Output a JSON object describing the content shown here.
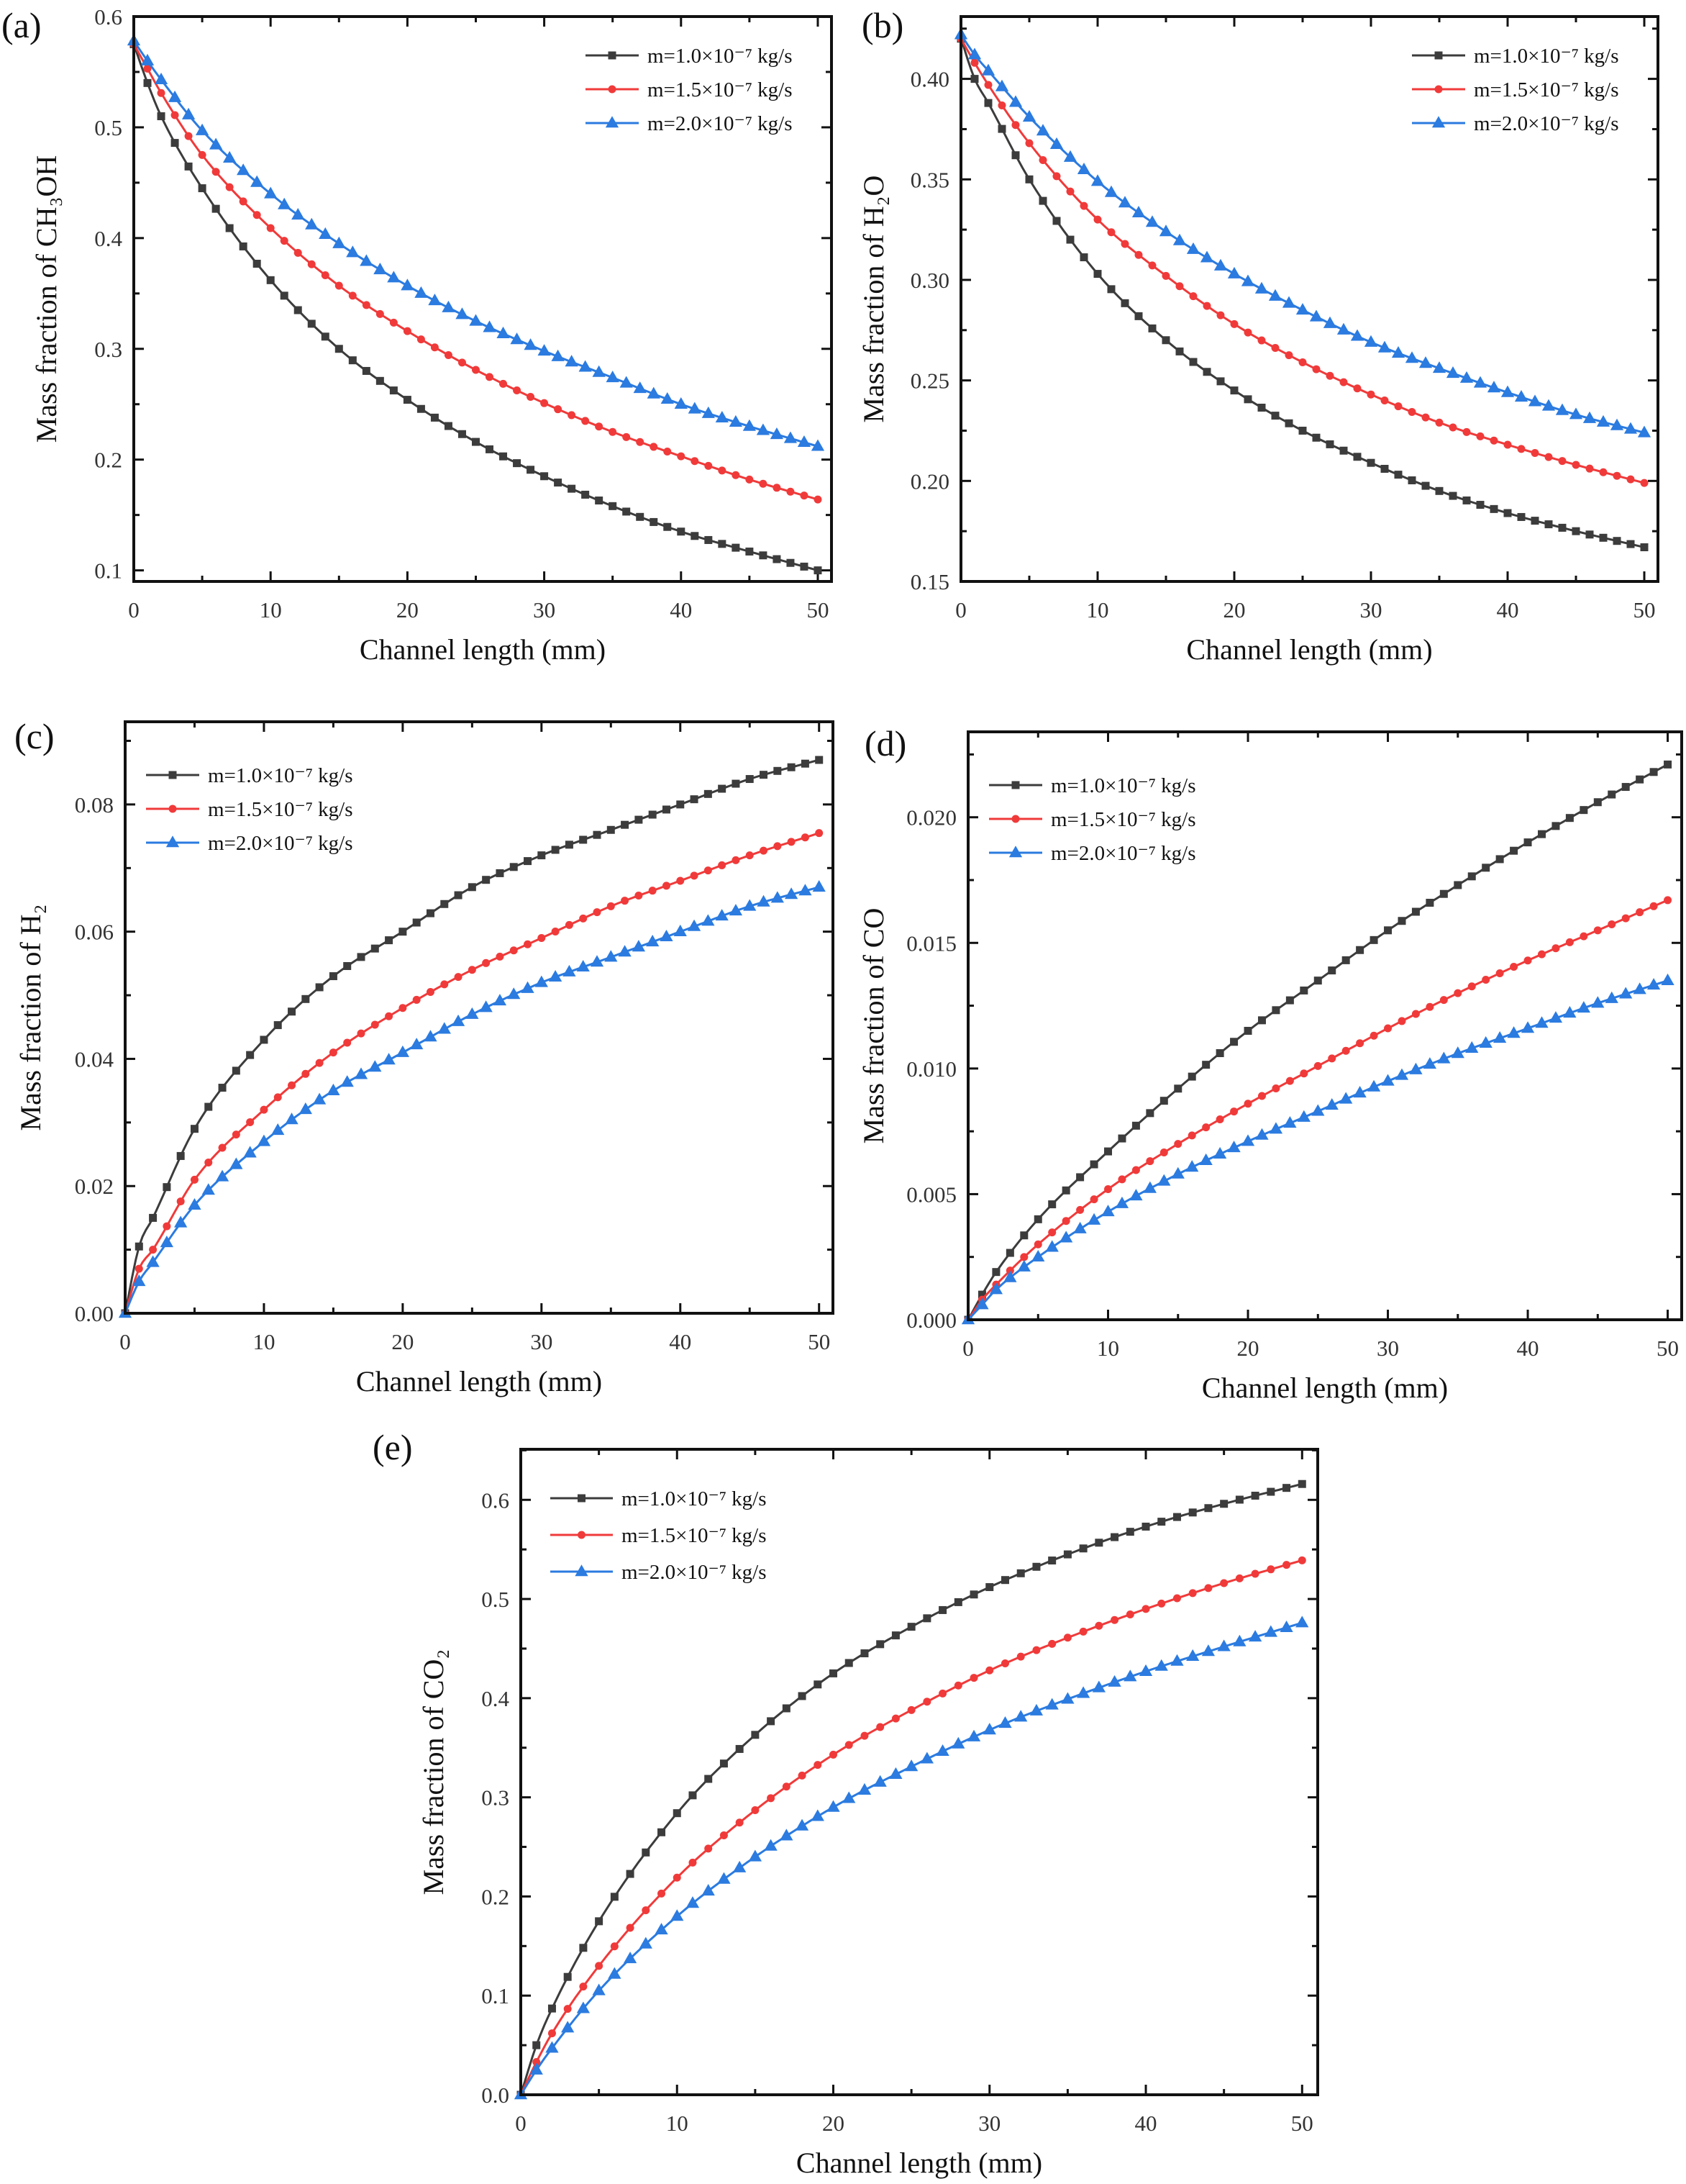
{
  "chart_data": [
    {
      "panel": "(a)",
      "type": "line",
      "xlabel": "Channel length (mm)",
      "ylabel": "Mass fraction of CH₃OH",
      "xlim": [
        0,
        51
      ],
      "ylim": [
        0.09,
        0.6
      ],
      "xticks": [
        0,
        10,
        20,
        30,
        40,
        50
      ],
      "xtick_labels": [
        "0",
        "10",
        "20",
        "30",
        "40",
        "50"
      ],
      "yticks": [
        0.1,
        0.2,
        0.3,
        0.4,
        0.5,
        0.6
      ],
      "ytick_labels": [
        "0.1",
        "0.2",
        "0.3",
        "0.4",
        "0.5",
        "0.6"
      ],
      "legend_position": "top-right",
      "grid": false,
      "x": [
        0,
        1,
        2,
        5,
        10,
        15,
        20,
        25,
        30,
        35,
        40,
        45,
        50
      ],
      "series": [
        {
          "name": "m=1.0×10⁻⁷ kg/s",
          "color": "#3c3c3c",
          "marker": "square",
          "values": [
            0.575,
            0.54,
            0.51,
            0.445,
            0.362,
            0.3,
            0.254,
            0.216,
            0.185,
            0.158,
            0.135,
            0.117,
            0.1
          ]
        },
        {
          "name": "m=1.5×10⁻⁷ kg/s",
          "color": "#f03a3a",
          "marker": "circle",
          "values": [
            0.575,
            0.553,
            0.531,
            0.475,
            0.409,
            0.357,
            0.316,
            0.281,
            0.251,
            0.225,
            0.203,
            0.182,
            0.164
          ]
        },
        {
          "name": "m=2.0×10⁻⁷ kg/s",
          "color": "#2b7be0",
          "marker": "triangle",
          "values": [
            0.578,
            0.56,
            0.543,
            0.497,
            0.44,
            0.395,
            0.357,
            0.325,
            0.298,
            0.274,
            0.25,
            0.23,
            0.212
          ]
        }
      ]
    },
    {
      "panel": "(b)",
      "type": "line",
      "xlabel": "Channel length (mm)",
      "ylabel": "Mass fraction of H₂O",
      "xlim": [
        0,
        51
      ],
      "ylim": [
        0.15,
        0.431
      ],
      "xticks": [
        0,
        10,
        20,
        30,
        40,
        50
      ],
      "xtick_labels": [
        "0",
        "10",
        "20",
        "30",
        "40",
        "50"
      ],
      "yticks": [
        0.15,
        0.2,
        0.25,
        0.3,
        0.35,
        0.4
      ],
      "ytick_labels": [
        "0.15",
        "0.20",
        "0.25",
        "0.30",
        "0.35",
        "0.40"
      ],
      "legend_position": "top-right",
      "grid": false,
      "x": [
        0,
        1,
        2,
        5,
        10,
        15,
        20,
        25,
        30,
        35,
        40,
        45,
        50
      ],
      "series": [
        {
          "name": "m=1.0×10⁻⁷ kg/s",
          "color": "#3c3c3c",
          "marker": "square",
          "values": [
            0.42,
            0.4,
            0.388,
            0.35,
            0.303,
            0.27,
            0.245,
            0.225,
            0.209,
            0.195,
            0.184,
            0.175,
            0.167
          ]
        },
        {
          "name": "m=1.5×10⁻⁷ kg/s",
          "color": "#f03a3a",
          "marker": "circle",
          "values": [
            0.42,
            0.408,
            0.397,
            0.368,
            0.33,
            0.302,
            0.278,
            0.259,
            0.243,
            0.229,
            0.218,
            0.208,
            0.199
          ]
        },
        {
          "name": "m=2.0×10⁻⁷ kg/s",
          "color": "#2b7be0",
          "marker": "triangle",
          "values": [
            0.422,
            0.412,
            0.404,
            0.381,
            0.349,
            0.324,
            0.303,
            0.285,
            0.269,
            0.256,
            0.244,
            0.233,
            0.224
          ]
        }
      ]
    },
    {
      "panel": "(c)",
      "type": "line",
      "xlabel": "Channel length (mm)",
      "ylabel": "Mass fraction of H₂",
      "xlim": [
        0,
        51
      ],
      "ylim": [
        0,
        0.093
      ],
      "xticks": [
        0,
        10,
        20,
        30,
        40,
        50
      ],
      "xtick_labels": [
        "0",
        "10",
        "20",
        "30",
        "40",
        "50"
      ],
      "yticks": [
        0,
        0.02,
        0.04,
        0.06,
        0.08
      ],
      "ytick_labels": [
        "0.00",
        "0.02",
        "0.04",
        "0.06",
        "0.08"
      ],
      "legend_position": "top-left",
      "grid": false,
      "x": [
        0,
        1,
        2,
        5,
        10,
        15,
        20,
        25,
        30,
        35,
        40,
        45,
        50
      ],
      "series": [
        {
          "name": "m=1.0×10⁻⁷ kg/s",
          "color": "#3c3c3c",
          "marker": "square",
          "values": [
            0,
            0.0105,
            0.015,
            0.029,
            0.043,
            0.053,
            0.06,
            0.067,
            0.072,
            0.076,
            0.08,
            0.084,
            0.087
          ]
        },
        {
          "name": "m=1.5×10⁻⁷ kg/s",
          "color": "#f03a3a",
          "marker": "circle",
          "values": [
            0,
            0.007,
            0.01,
            0.021,
            0.032,
            0.041,
            0.048,
            0.054,
            0.059,
            0.064,
            0.068,
            0.072,
            0.0755
          ]
        },
        {
          "name": "m=2.0×10⁻⁷ kg/s",
          "color": "#2b7be0",
          "marker": "triangle",
          "values": [
            0,
            0.005,
            0.008,
            0.017,
            0.027,
            0.035,
            0.041,
            0.047,
            0.052,
            0.056,
            0.06,
            0.064,
            0.067
          ]
        }
      ]
    },
    {
      "panel": "(d)",
      "type": "line",
      "xlabel": "Channel length (mm)",
      "ylabel": "Mass fraction of CO",
      "xlim": [
        0,
        51
      ],
      "ylim": [
        0,
        0.0234
      ],
      "xticks": [
        0,
        10,
        20,
        30,
        40,
        50
      ],
      "xtick_labels": [
        "0",
        "10",
        "20",
        "30",
        "40",
        "50"
      ],
      "yticks": [
        0,
        0.005,
        0.01,
        0.015,
        0.02
      ],
      "ytick_labels": [
        "0.000",
        "0.005",
        "0.010",
        "0.015",
        "0.020"
      ],
      "legend_position": "top-left",
      "grid": false,
      "x": [
        0,
        1,
        2,
        5,
        10,
        15,
        20,
        25,
        30,
        35,
        40,
        45,
        50
      ],
      "series": [
        {
          "name": "m=1.0×10⁻⁷ kg/s",
          "color": "#3c3c3c",
          "marker": "square",
          "values": [
            0,
            0.001,
            0.0019,
            0.004,
            0.0067,
            0.0092,
            0.0115,
            0.0135,
            0.0155,
            0.0173,
            0.019,
            0.0206,
            0.0221
          ]
        },
        {
          "name": "m=1.5×10⁻⁷ kg/s",
          "color": "#f03a3a",
          "marker": "circle",
          "values": [
            0,
            0.0008,
            0.0014,
            0.003,
            0.0052,
            0.007,
            0.0086,
            0.0101,
            0.0116,
            0.013,
            0.0143,
            0.0155,
            0.0167
          ]
        },
        {
          "name": "m=2.0×10⁻⁷ kg/s",
          "color": "#2b7be0",
          "marker": "triangle",
          "values": [
            0,
            0.0006,
            0.0012,
            0.0025,
            0.0043,
            0.0058,
            0.0071,
            0.0083,
            0.0095,
            0.0106,
            0.0116,
            0.0126,
            0.0135
          ]
        }
      ]
    },
    {
      "panel": "(e)",
      "type": "line",
      "xlabel": "Channel length (mm)",
      "ylabel": "Mass fraction of CO₂",
      "xlim": [
        0,
        51
      ],
      "ylim": [
        0,
        0.651
      ],
      "xticks": [
        0,
        10,
        20,
        30,
        40,
        50
      ],
      "xtick_labels": [
        "0",
        "10",
        "20",
        "30",
        "40",
        "50"
      ],
      "yticks": [
        0,
        0.1,
        0.2,
        0.3,
        0.4,
        0.5,
        0.6
      ],
      "ytick_labels": [
        "0.0",
        "0.1",
        "0.2",
        "0.3",
        "0.4",
        "0.5",
        "0.6"
      ],
      "legend_position": "top-left",
      "grid": false,
      "x": [
        0,
        1,
        2,
        5,
        10,
        15,
        20,
        25,
        30,
        35,
        40,
        45,
        50
      ],
      "series": [
        {
          "name": "m=1.0×10⁻⁷ kg/s",
          "color": "#3c3c3c",
          "marker": "square",
          "values": [
            0,
            0.05,
            0.087,
            0.175,
            0.284,
            0.363,
            0.425,
            0.472,
            0.512,
            0.545,
            0.573,
            0.596,
            0.616
          ]
        },
        {
          "name": "m=1.5×10⁻⁷ kg/s",
          "color": "#f03a3a",
          "marker": "circle",
          "values": [
            0,
            0.033,
            0.062,
            0.13,
            0.219,
            0.287,
            0.343,
            0.388,
            0.428,
            0.461,
            0.49,
            0.516,
            0.539
          ]
        },
        {
          "name": "m=2.0×10⁻⁷ kg/s",
          "color": "#2b7be0",
          "marker": "triangle",
          "values": [
            0,
            0.025,
            0.047,
            0.105,
            0.18,
            0.24,
            0.29,
            0.331,
            0.368,
            0.399,
            0.427,
            0.452,
            0.476
          ]
        }
      ]
    }
  ]
}
